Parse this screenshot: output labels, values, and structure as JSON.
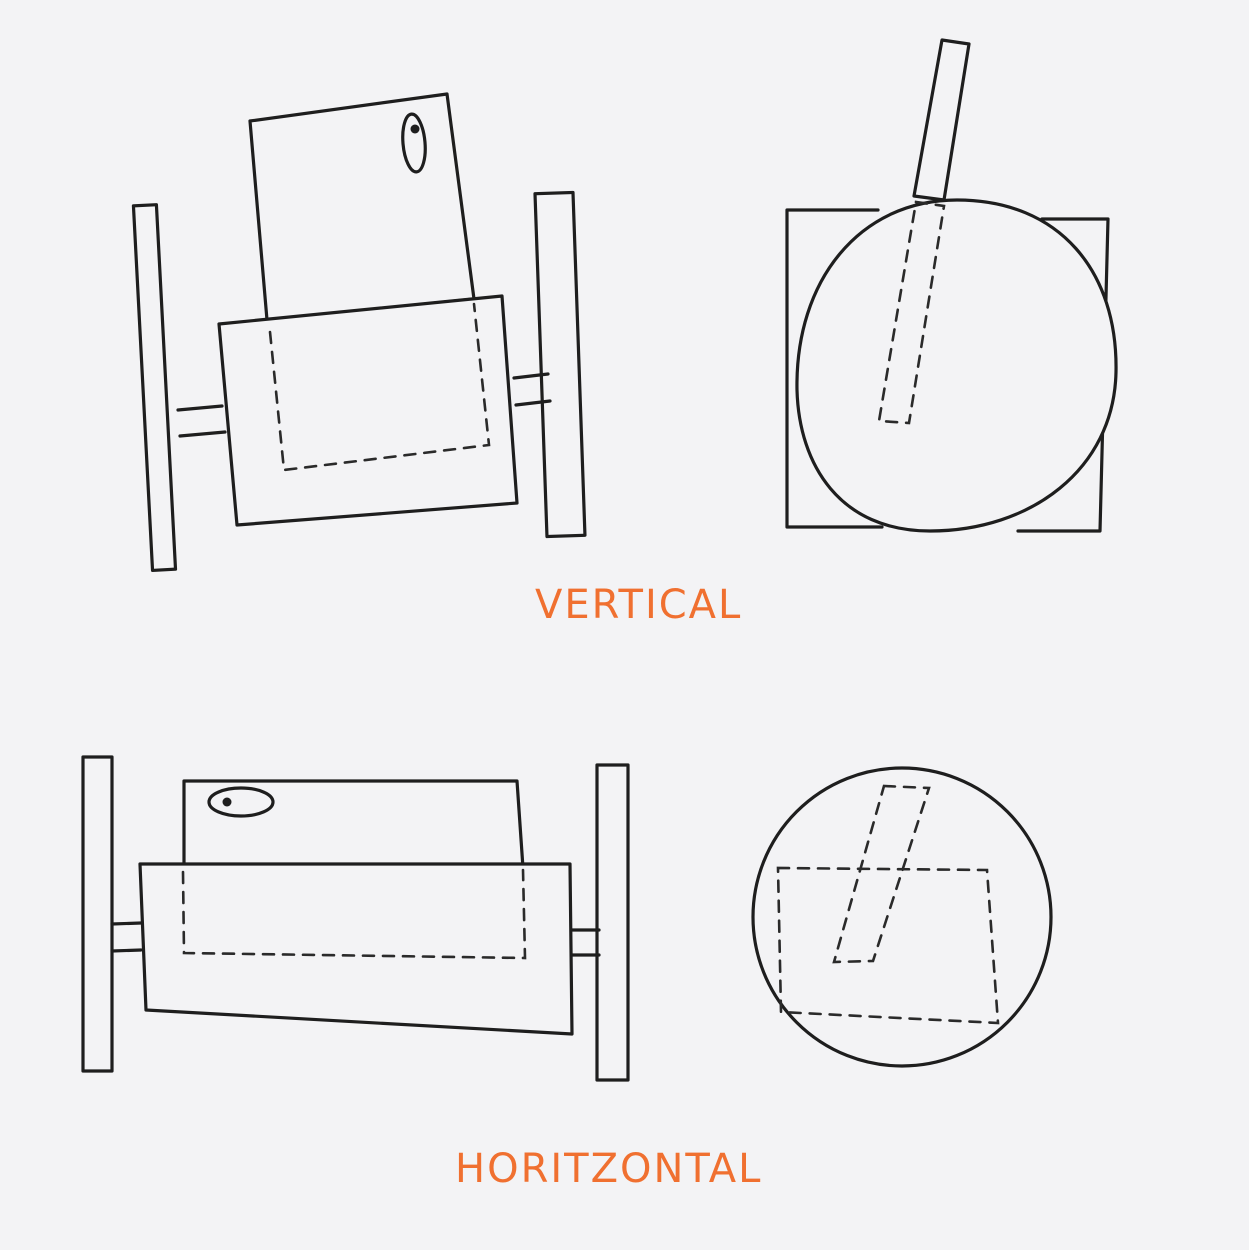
{
  "labels": {
    "vertical": "Vertical",
    "horizontal": "HORITZONTAL"
  },
  "colors": {
    "paper": "#f3f3f5",
    "ink": "#1e1e1e",
    "label": "#f07030"
  }
}
